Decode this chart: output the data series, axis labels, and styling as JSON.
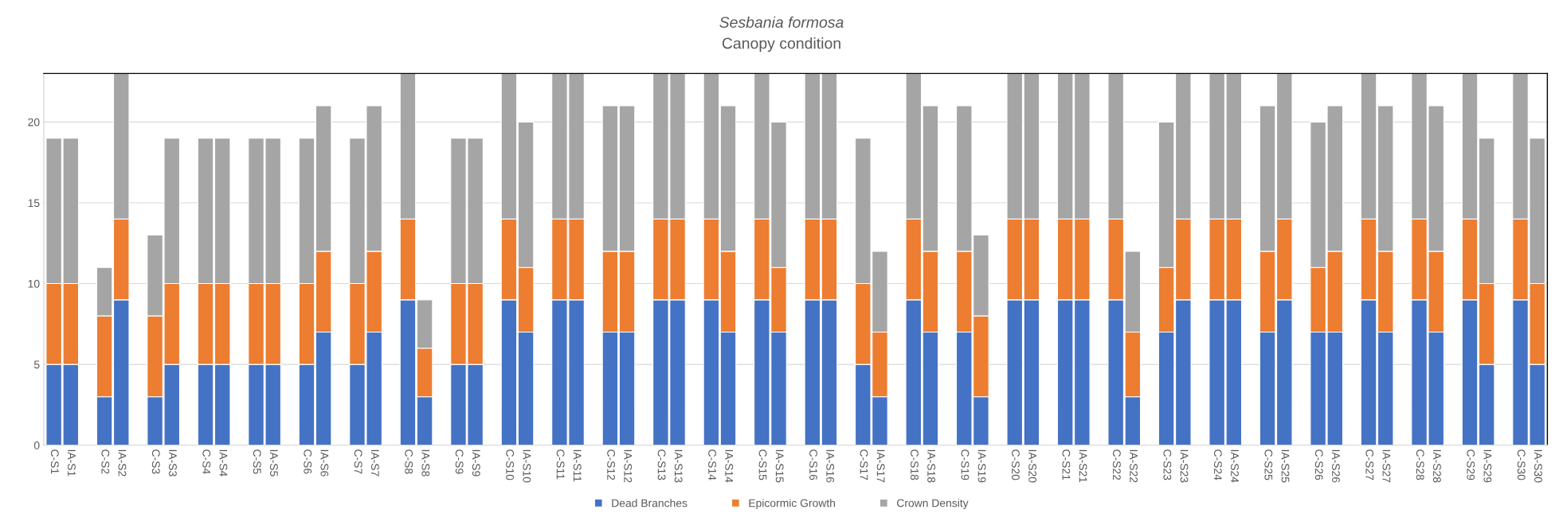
{
  "chart_data": {
    "type": "bar",
    "title": "Sesbania formosa",
    "subtitle": "Canopy condition",
    "stacked": true,
    "categories": [
      "C-S1",
      "IA-S1",
      null,
      "C-S2",
      "IA-S2",
      null,
      "C-S3",
      "IA-S3",
      null,
      "C-S4",
      "IA-S4",
      null,
      "C-S5",
      "IA-S5",
      null,
      "C-S6",
      "IA-S6",
      null,
      "C-S7",
      "IA-S7",
      null,
      "C-S8",
      "IA-S8",
      null,
      "C-S9",
      "IA-S9",
      null,
      "C-S10",
      "IA-S10",
      null,
      "C-S11",
      "IA-S11",
      null,
      "C-S12",
      "IA-S12",
      null,
      "C-S13",
      "IA-S13",
      null,
      "C-S14",
      "IA-S14",
      null,
      "C-S15",
      "IA-S15",
      null,
      "C-S16",
      "IA-S16",
      null,
      "C-S17",
      "IA-S17",
      null,
      "C-S18",
      "IA-S18",
      null,
      "C-S19",
      "IA-S19",
      null,
      "C-S20",
      "IA-S20",
      null,
      "C-S21",
      "IA-S21",
      null,
      "C-S22",
      "IA-S22",
      null,
      "C-S23",
      "IA-S23",
      null,
      "C-S24",
      "IA-S24",
      null,
      "C-S25",
      "IA-S25",
      null,
      "C-S26",
      "IA-S26",
      null,
      "C-S27",
      "IA-S27",
      null,
      "C-S28",
      "IA-S28",
      null,
      "C-S29",
      "IA-S29",
      null,
      "C-S30",
      "IA-S30"
    ],
    "series": [
      {
        "name": "Dead Branches",
        "color": "#4472c4",
        "values": [
          5,
          5,
          null,
          3,
          9,
          null,
          3,
          5,
          null,
          5,
          5,
          null,
          5,
          5,
          null,
          5,
          7,
          null,
          5,
          7,
          null,
          9,
          3,
          null,
          5,
          5,
          null,
          9,
          7,
          null,
          9,
          9,
          null,
          7,
          7,
          null,
          9,
          9,
          null,
          9,
          7,
          null,
          9,
          7,
          null,
          9,
          9,
          null,
          5,
          3,
          null,
          9,
          7,
          null,
          7,
          3,
          null,
          9,
          9,
          null,
          9,
          9,
          null,
          9,
          3,
          null,
          7,
          9,
          null,
          9,
          9,
          null,
          7,
          9,
          null,
          7,
          7,
          null,
          9,
          7,
          null,
          9,
          7,
          null,
          9,
          5,
          null,
          9,
          5
        ]
      },
      {
        "name": "Epicormic Growth",
        "color": "#ed7d31",
        "values": [
          5,
          5,
          null,
          5,
          5,
          null,
          5,
          5,
          null,
          5,
          5,
          null,
          5,
          5,
          null,
          5,
          5,
          null,
          5,
          5,
          null,
          5,
          3,
          null,
          5,
          5,
          null,
          5,
          4,
          null,
          5,
          5,
          null,
          5,
          5,
          null,
          5,
          5,
          null,
          5,
          5,
          null,
          5,
          4,
          null,
          5,
          5,
          null,
          5,
          4,
          null,
          5,
          5,
          null,
          5,
          5,
          null,
          5,
          5,
          null,
          5,
          5,
          null,
          5,
          4,
          null,
          4,
          5,
          null,
          5,
          5,
          null,
          5,
          5,
          null,
          4,
          5,
          null,
          5,
          5,
          null,
          5,
          5,
          null,
          5,
          5,
          null,
          5,
          5
        ]
      },
      {
        "name": "Crown Density",
        "color": "#a5a5a5",
        "values": [
          9,
          9,
          null,
          3,
          9,
          null,
          5,
          9,
          null,
          9,
          9,
          null,
          9,
          9,
          null,
          9,
          9,
          null,
          9,
          9,
          null,
          9,
          3,
          null,
          9,
          9,
          null,
          9,
          9,
          null,
          9,
          9,
          null,
          9,
          9,
          null,
          9,
          9,
          null,
          9,
          9,
          null,
          9,
          9,
          null,
          9,
          9,
          null,
          9,
          5,
          null,
          9,
          9,
          null,
          9,
          5,
          null,
          9,
          9,
          null,
          9,
          9,
          null,
          9,
          5,
          null,
          9,
          9,
          null,
          9,
          9,
          null,
          9,
          9,
          null,
          9,
          9,
          null,
          9,
          9,
          null,
          9,
          9,
          null,
          9,
          9,
          null,
          9,
          9
        ]
      }
    ],
    "ylim": [
      0,
      23
    ],
    "yticks": [
      0,
      5,
      10,
      15,
      20
    ],
    "grid": "y",
    "legend": "bottom"
  }
}
